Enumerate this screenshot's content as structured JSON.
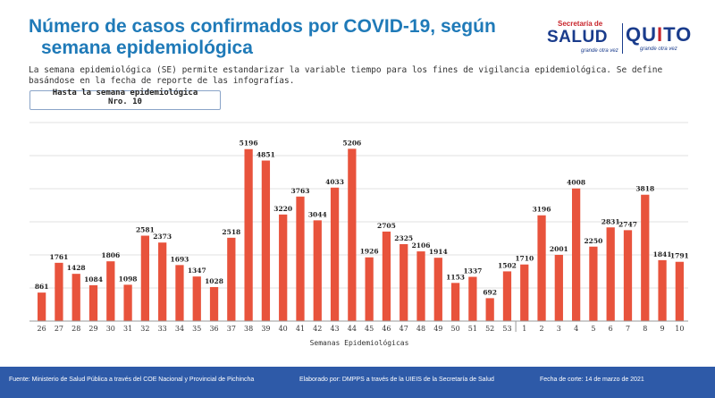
{
  "header": {
    "title_line1": "Número de casos confirmados por COVID-19, según",
    "title_line2": "semana epidemiológica"
  },
  "logos": {
    "salud_top": "Secretaría de",
    "salud_main": "SALUD",
    "salud_slogan": "grande otra vez",
    "quito_q": "QU",
    "quito_i": "I",
    "quito_to": "TO",
    "quito_slogan": "grande otra vez"
  },
  "description": "La semana epidemiológica (SE) permite estandarizar la variable tiempo para los fines de vigilancia epidemiológica. Se define basándose en la fecha de reporte de las infografías.",
  "week_box": {
    "line1": "Hasta la semana epidemiológica",
    "line2": "Nro. 10"
  },
  "footer": {
    "source": "Fuente: Ministerio de Salud Pública a través del COE Nacional y Provincial de Pichincha",
    "prepared": "Elaborado por: DMPPS a través de la UIEIS de la Secretaría de Salud",
    "cutoff": "Fecha de corte: 14 de marzo de 2021"
  },
  "colors": {
    "title": "#1f7ab8",
    "bar": "#e8533c",
    "footer_bg": "#2e5aa8",
    "grid": "#e2e2e2"
  },
  "chart_data": {
    "type": "bar",
    "title": "",
    "xlabel": "Semanas Epidemiológicas",
    "ylabel": "",
    "ylim": [
      0,
      6000
    ],
    "grid": true,
    "categories": [
      "26",
      "27",
      "28",
      "29",
      "30",
      "31",
      "32",
      "33",
      "34",
      "35",
      "36",
      "37",
      "38",
      "39",
      "40",
      "41",
      "42",
      "43",
      "44",
      "45",
      "46",
      "47",
      "48",
      "49",
      "50",
      "51",
      "52",
      "53",
      "1",
      "2",
      "3",
      "4",
      "5",
      "6",
      "7",
      "8",
      "9",
      "10"
    ],
    "values": [
      861,
      1761,
      1428,
      1084,
      1806,
      1098,
      2581,
      2373,
      1693,
      1347,
      1028,
      2518,
      5196,
      4851,
      3220,
      3763,
      3044,
      4033,
      5206,
      1926,
      2705,
      2325,
      2106,
      1914,
      1153,
      1337,
      692,
      1502,
      1710,
      3196,
      2001,
      4008,
      2250,
      2831,
      2747,
      3818,
      1841,
      1791
    ]
  }
}
